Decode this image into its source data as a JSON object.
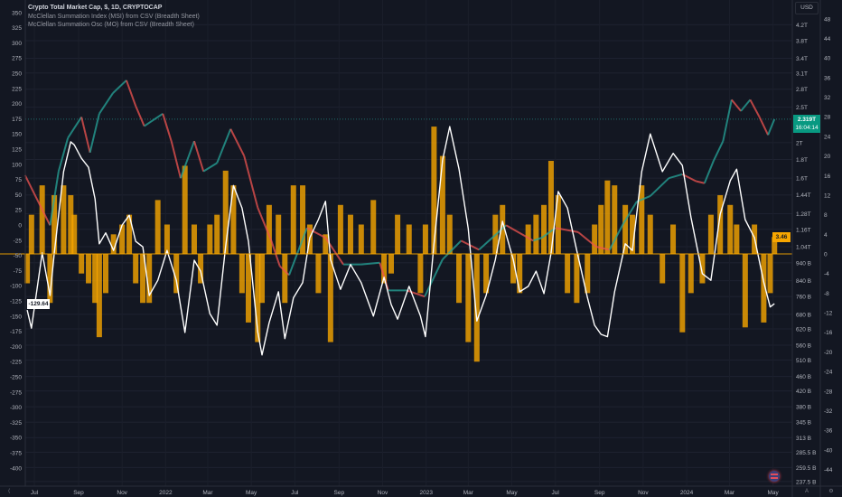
{
  "legend": {
    "title": "Crypto Total Market Cap, $, 1D, CRYPTOCAP",
    "series1": "McClellan Summation Index (MSI) from CSV (Breadth Sheet)",
    "series2": "McClellan Summation Osc (MO) from CSV (Breadth Sheet)"
  },
  "currency_label": "USD",
  "badges": {
    "price": "2.319T",
    "countdown": "16:04:14",
    "msi": "-129.64",
    "mo": "3.46"
  },
  "bottom_buttons": {
    "auto": "A",
    "settings_icon": "gear-icon"
  },
  "colors": {
    "background": "#131722",
    "up": "#26a69a",
    "down": "#ef5350",
    "msi_line": "#ffffff",
    "mo_bars": "#f7a600",
    "price_badge": "#089981"
  },
  "chart_data": {
    "type": "line",
    "x_axis": {
      "type": "date",
      "ticks": [
        {
          "label": "Jul",
          "date": "2021-07-01"
        },
        {
          "label": "Sep",
          "date": "2021-09-01"
        },
        {
          "label": "Nov",
          "date": "2021-11-01"
        },
        {
          "label": "2022",
          "date": "2022-01-01"
        },
        {
          "label": "Mar",
          "date": "2022-03-01"
        },
        {
          "label": "May",
          "date": "2022-05-01"
        },
        {
          "label": "Jul",
          "date": "2022-07-01"
        },
        {
          "label": "Sep",
          "date": "2022-09-01"
        },
        {
          "label": "Nov",
          "date": "2022-11-01"
        },
        {
          "label": "2023",
          "date": "2023-01-01"
        },
        {
          "label": "Mar",
          "date": "2023-03-01"
        },
        {
          "label": "May",
          "date": "2023-05-01"
        },
        {
          "label": "Jul",
          "date": "2023-07-01"
        },
        {
          "label": "Sep",
          "date": "2023-09-01"
        },
        {
          "label": "Nov",
          "date": "2023-11-01"
        },
        {
          "label": "2024",
          "date": "2024-01-01"
        },
        {
          "label": "Mar",
          "date": "2024-03-01"
        },
        {
          "label": "May",
          "date": "2024-05-01"
        }
      ]
    },
    "left_axis": {
      "range": [
        -400,
        350
      ],
      "ticks": [
        350,
        325,
        300,
        275,
        250,
        225,
        200,
        175,
        150,
        125,
        100,
        75,
        50,
        25,
        0,
        -25,
        -50,
        -75,
        -100,
        -125,
        -150,
        -175,
        -200,
        -225,
        -250,
        -275,
        -300,
        -325,
        -350,
        -375,
        -400
      ]
    },
    "price_axis": {
      "scale": "log",
      "unit": "USD",
      "ticks": [
        {
          "label": "4.2T",
          "value": 4.2
        },
        {
          "label": "3.8T",
          "value": 3.8
        },
        {
          "label": "3.4T",
          "value": 3.4
        },
        {
          "label": "3.1T",
          "value": 3.1
        },
        {
          "label": "2.8T",
          "value": 2.8
        },
        {
          "label": "2.5T",
          "value": 2.5
        },
        {
          "label": "2T",
          "value": 2.0
        },
        {
          "label": "1.8T",
          "value": 1.8
        },
        {
          "label": "1.6T",
          "value": 1.6
        },
        {
          "label": "1.44T",
          "value": 1.44
        },
        {
          "label": "1.28T",
          "value": 1.28
        },
        {
          "label": "1.16T",
          "value": 1.16
        },
        {
          "label": "1.04T",
          "value": 1.04
        },
        {
          "label": "940 B",
          "value": 0.94
        },
        {
          "label": "840 B",
          "value": 0.84
        },
        {
          "label": "760 B",
          "value": 0.76
        },
        {
          "label": "680 B",
          "value": 0.68
        },
        {
          "label": "620 B",
          "value": 0.62
        },
        {
          "label": "560 B",
          "value": 0.56
        },
        {
          "label": "510 B",
          "value": 0.51
        },
        {
          "label": "460 B",
          "value": 0.46
        },
        {
          "label": "420 B",
          "value": 0.42
        },
        {
          "label": "380 B",
          "value": 0.38
        },
        {
          "label": "345 B",
          "value": 0.345
        },
        {
          "label": "313 B",
          "value": 0.313
        },
        {
          "label": "285.5 B",
          "value": 0.2855
        },
        {
          "label": "259.5 B",
          "value": 0.2595
        },
        {
          "label": "237.5 B",
          "value": 0.2375
        }
      ]
    },
    "osc_axis": {
      "range": [
        -44,
        48
      ],
      "ticks": [
        48,
        44,
        40,
        36,
        32,
        28,
        24,
        20,
        16,
        12,
        8,
        4,
        0,
        -4,
        -8,
        -12,
        -16,
        -20,
        -24,
        -28,
        -32,
        -36,
        -40,
        -44
      ]
    },
    "price": {
      "axis": "price_axis",
      "unit": "T",
      "dates": [
        "2021-06-18",
        "2021-07-23",
        "2021-08-04",
        "2021-08-17",
        "2021-09-05",
        "2021-09-17",
        "2021-09-30",
        "2021-10-19",
        "2021-11-07",
        "2021-11-20",
        "2021-12-02",
        "2021-12-28",
        "2022-01-09",
        "2022-01-22",
        "2022-02-10",
        "2022-02-23",
        "2022-03-14",
        "2022-04-02",
        "2022-04-21",
        "2022-05-10",
        "2022-05-29",
        "2022-06-10",
        "2022-06-23",
        "2022-07-18",
        "2022-08-13",
        "2022-09-07",
        "2022-10-02",
        "2022-10-28",
        "2022-11-09",
        "2022-12-05",
        "2022-12-30",
        "2023-01-24",
        "2023-02-19",
        "2023-03-16",
        "2023-04-23",
        "2023-05-31",
        "2023-06-12",
        "2023-07-01",
        "2023-08-02",
        "2023-08-27",
        "2023-09-15",
        "2023-10-04",
        "2023-10-23",
        "2023-11-11",
        "2023-12-07",
        "2023-12-26",
        "2024-01-14",
        "2024-01-26",
        "2024-02-08",
        "2024-02-21",
        "2024-03-04",
        "2024-03-17",
        "2024-03-30",
        "2024-04-12",
        "2024-04-24",
        "2024-05-03"
      ],
      "values": [
        1.63,
        1.19,
        1.67,
        2.06,
        2.35,
        1.88,
        2.4,
        2.73,
        2.96,
        2.52,
        2.22,
        2.4,
        2.02,
        1.6,
        2.02,
        1.67,
        1.76,
        2.18,
        1.84,
        1.33,
        1.08,
        0.92,
        0.87,
        1.17,
        1.1,
        0.93,
        0.93,
        0.94,
        0.79,
        0.79,
        0.76,
        0.96,
        1.08,
        1.02,
        1.19,
        1.08,
        1.1,
        1.17,
        1.14,
        1.04,
        1.02,
        1.2,
        1.38,
        1.43,
        1.6,
        1.64,
        1.57,
        1.55,
        1.79,
        2.02,
        2.62,
        2.44,
        2.62,
        2.35,
        2.1,
        2.319
      ]
    },
    "series": [
      {
        "name": "McClellan Summation Index (MSI)",
        "type": "line",
        "axis": "left_axis",
        "dates": [
          "2021-06-21",
          "2021-06-27",
          "2021-07-12",
          "2021-07-23",
          "2021-07-29",
          "2021-08-11",
          "2021-08-21",
          "2021-08-26",
          "2021-09-05",
          "2021-09-15",
          "2021-09-24",
          "2021-09-30",
          "2021-10-09",
          "2021-10-20",
          "2021-11-01",
          "2021-11-11",
          "2021-11-20",
          "2021-11-30",
          "2021-12-09",
          "2021-12-21",
          "2022-01-03",
          "2022-01-16",
          "2022-01-28",
          "2022-02-10",
          "2022-02-19",
          "2022-03-04",
          "2022-03-14",
          "2022-03-26",
          "2022-04-06",
          "2022-04-18",
          "2022-04-27",
          "2022-05-10",
          "2022-05-16",
          "2022-05-26",
          "2022-06-08",
          "2022-06-17",
          "2022-06-29",
          "2022-07-12",
          "2022-07-22",
          "2022-08-03",
          "2022-08-13",
          "2022-08-20",
          "2022-09-03",
          "2022-09-17",
          "2022-10-02",
          "2022-10-19",
          "2022-11-03",
          "2022-11-13",
          "2022-11-22",
          "2022-12-08",
          "2022-12-24",
          "2022-12-31",
          "2023-01-12",
          "2023-01-24",
          "2023-02-03",
          "2023-02-16",
          "2023-03-01",
          "2023-03-13",
          "2023-03-26",
          "2023-04-08",
          "2023-04-18",
          "2023-05-03",
          "2023-05-12",
          "2023-05-24",
          "2023-06-04",
          "2023-06-15",
          "2023-06-25",
          "2023-07-05",
          "2023-07-18",
          "2023-07-31",
          "2023-08-15",
          "2023-08-25",
          "2023-09-03",
          "2023-09-12",
          "2023-09-22",
          "2023-10-07",
          "2023-10-17",
          "2023-10-30",
          "2023-11-11",
          "2023-11-28",
          "2023-12-13",
          "2023-12-26",
          "2024-01-07",
          "2024-01-23",
          "2024-02-04",
          "2024-02-17",
          "2024-03-02",
          "2024-03-11",
          "2024-03-23",
          "2024-04-05",
          "2024-04-18",
          "2024-04-27",
          "2024-05-03"
        ],
        "values": [
          -140,
          -170,
          -46,
          -116,
          -46,
          88,
          137,
          132,
          110,
          95,
          43,
          -31,
          -13,
          -42,
          0,
          16,
          -27,
          -36,
          -116,
          -91,
          -42,
          -91,
          -177,
          -58,
          -76,
          -146,
          -165,
          -36,
          65,
          28,
          -27,
          -176,
          -214,
          -161,
          -110,
          -187,
          -120,
          -95,
          -21,
          9,
          39,
          -57,
          -106,
          -65,
          -95,
          -150,
          -86,
          -131,
          -155,
          -101,
          -150,
          -184,
          -31,
          107,
          162,
          92,
          -6,
          -158,
          -116,
          -57,
          6,
          -57,
          -110,
          -101,
          -76,
          -113,
          -46,
          55,
          28,
          -42,
          -120,
          -165,
          -180,
          -184,
          -110,
          -31,
          -42,
          88,
          150,
          88,
          118,
          98,
          13,
          -80,
          -91,
          18,
          73,
          92,
          9,
          -21,
          -94,
          -135,
          -129.64
        ]
      },
      {
        "name": "McClellan Summation Osc (MO)",
        "type": "bar",
        "axis": "osc_axis",
        "dates": [
          "2021-06-21",
          "2021-06-27",
          "2021-07-12",
          "2021-07-23",
          "2021-07-29",
          "2021-08-11",
          "2021-08-21",
          "2021-08-26",
          "2021-09-05",
          "2021-09-15",
          "2021-09-24",
          "2021-09-30",
          "2021-10-09",
          "2021-10-20",
          "2021-11-01",
          "2021-11-11",
          "2021-11-20",
          "2021-11-30",
          "2021-12-09",
          "2021-12-21",
          "2022-01-03",
          "2022-01-16",
          "2022-01-28",
          "2022-02-10",
          "2022-02-19",
          "2022-03-04",
          "2022-03-14",
          "2022-03-26",
          "2022-04-06",
          "2022-04-18",
          "2022-04-27",
          "2022-05-10",
          "2022-05-16",
          "2022-05-26",
          "2022-06-08",
          "2022-06-17",
          "2022-06-29",
          "2022-07-12",
          "2022-07-22",
          "2022-08-03",
          "2022-08-13",
          "2022-08-20",
          "2022-09-03",
          "2022-09-17",
          "2022-10-02",
          "2022-10-19",
          "2022-11-03",
          "2022-11-13",
          "2022-11-22",
          "2022-12-08",
          "2022-12-24",
          "2022-12-31",
          "2023-01-12",
          "2023-01-24",
          "2023-02-03",
          "2023-02-16",
          "2023-03-01",
          "2023-03-13",
          "2023-03-26",
          "2023-04-08",
          "2023-04-18",
          "2023-05-03",
          "2023-05-12",
          "2023-05-24",
          "2023-06-04",
          "2023-06-15",
          "2023-06-25",
          "2023-07-05",
          "2023-07-18",
          "2023-07-31",
          "2023-08-15",
          "2023-08-25",
          "2023-09-03",
          "2023-09-12",
          "2023-09-22",
          "2023-10-07",
          "2023-10-17",
          "2023-10-30",
          "2023-11-11",
          "2023-11-28",
          "2023-12-13",
          "2023-12-26",
          "2024-01-07",
          "2024-01-23",
          "2024-02-04",
          "2024-02-17",
          "2024-03-02",
          "2024-03-11",
          "2024-03-23",
          "2024-04-05",
          "2024-04-18",
          "2024-04-27",
          "2024-05-03"
        ],
        "values": [
          -6,
          8,
          14,
          -10,
          12,
          14,
          12,
          8,
          -4,
          -6,
          -10,
          -17,
          -8,
          4,
          6,
          8,
          -6,
          -10,
          -10,
          11,
          6,
          -8,
          18,
          6,
          -6,
          6,
          8,
          17,
          14,
          -8,
          -14,
          -18,
          -10,
          10,
          8,
          -10,
          14,
          14,
          6,
          -8,
          4,
          -18,
          10,
          8,
          6,
          11,
          -6,
          -4,
          8,
          6,
          -8,
          6,
          26,
          20,
          8,
          -10,
          -18,
          -22,
          -8,
          8,
          10,
          -6,
          -8,
          6,
          8,
          10,
          19,
          12,
          -8,
          -10,
          -8,
          6,
          10,
          15,
          14,
          10,
          8,
          14,
          8,
          -6,
          6,
          -16,
          -8,
          -6,
          8,
          12,
          10,
          6,
          -15,
          6,
          -14,
          -8,
          3.46
        ]
      }
    ]
  }
}
